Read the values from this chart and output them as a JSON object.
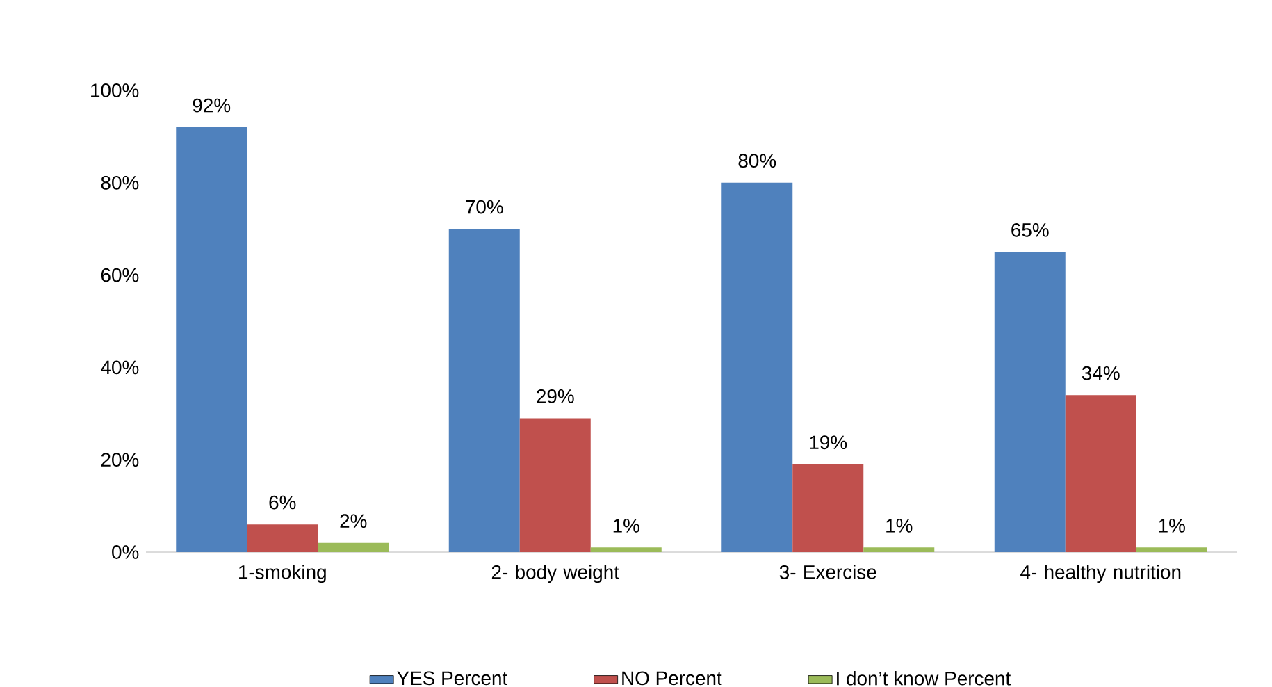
{
  "chart_data": {
    "type": "bar",
    "categories": [
      "1-smoking",
      "2- body weight",
      "3- Exercise",
      "4- healthy nutrition"
    ],
    "series": [
      {
        "name": "YES Percent",
        "color": "#4f81bd",
        "values": [
          92,
          70,
          80,
          65
        ],
        "value_labels": [
          "92%",
          "70%",
          "80%",
          "65%"
        ]
      },
      {
        "name": "NO Percent",
        "color": "#c0504d",
        "values": [
          6,
          29,
          19,
          34
        ],
        "value_labels": [
          "6%",
          "29%",
          "19%",
          "34%"
        ]
      },
      {
        "name": "I don’t know  Percent",
        "color": "#9bbb59",
        "values": [
          2,
          1,
          1,
          1
        ],
        "value_labels": [
          "2%",
          "1%",
          "1%",
          "1%"
        ]
      }
    ],
    "ylim": [
      0,
      100
    ],
    "yticks": [
      {
        "value": 0,
        "label": "0%"
      },
      {
        "value": 20,
        "label": "20%"
      },
      {
        "value": 40,
        "label": "40%"
      },
      {
        "value": 60,
        "label": "60%"
      },
      {
        "value": 80,
        "label": "80%"
      },
      {
        "value": 100,
        "label": "100%"
      }
    ],
    "grid": false,
    "legend": "bottom"
  }
}
